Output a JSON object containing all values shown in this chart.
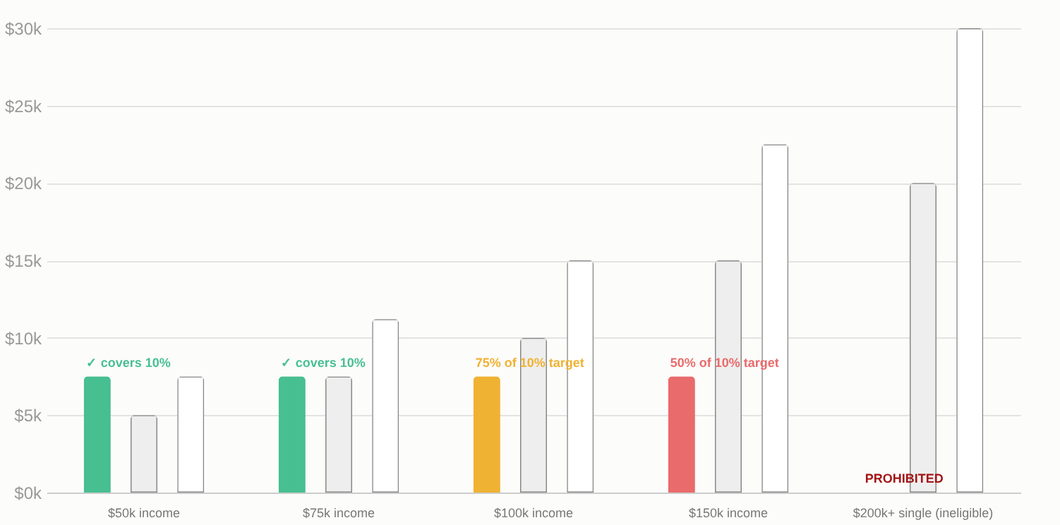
{
  "chart_data": {
    "type": "bar",
    "categories": [
      "$50k income",
      "$75k income",
      "$100k income",
      "$150k income",
      "$200k+ single (ineligible)"
    ],
    "series": [
      {
        "colors": [
          "#48bf91",
          "#48bf91",
          "#f0b232",
          "#e96b6b",
          "#a31515"
        ],
        "values": [
          7500,
          7500,
          7500,
          7500,
          null
        ]
      },
      {
        "color": "#eeeeee",
        "values": [
          5000,
          7500,
          10000,
          15000,
          20000
        ]
      },
      {
        "color": "#ffffff",
        "values": [
          7500,
          11200,
          15000,
          22500,
          30000
        ]
      }
    ],
    "annotations": [
      "✓ covers 10%",
      "✓ covers 10%",
      "75% of 10% target",
      "50% of 10% target",
      "PROHIBITED"
    ],
    "ylim": [
      0,
      30000
    ],
    "yticks": [
      {
        "value": 0,
        "label": "$0k"
      },
      {
        "value": 5000,
        "label": "$5k"
      },
      {
        "value": 10000,
        "label": "$10k"
      },
      {
        "value": 15000,
        "label": "$15k"
      },
      {
        "value": 20000,
        "label": "$20k"
      },
      {
        "value": 25000,
        "label": "$25k"
      },
      {
        "value": 30000,
        "label": "$30k"
      }
    ],
    "grid": true
  }
}
